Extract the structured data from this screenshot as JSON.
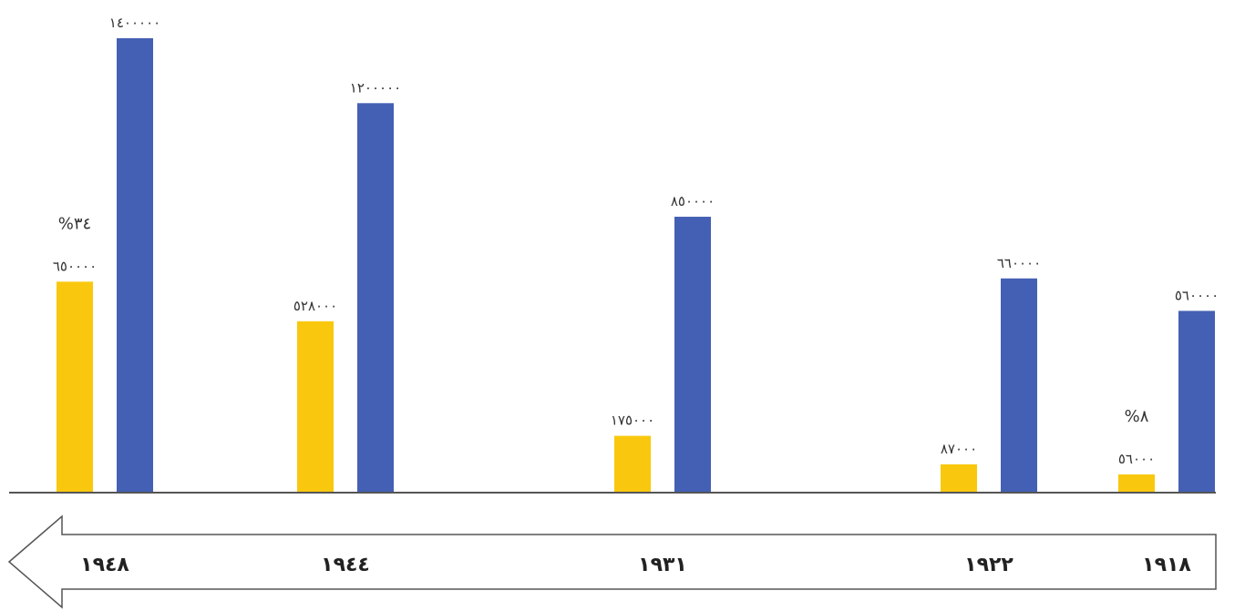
{
  "chart_data": {
    "type": "bar",
    "title": "",
    "xlabel": "",
    "ylabel": "",
    "ylim": [
      0,
      1400000
    ],
    "grid": false,
    "legend": "none",
    "direction": "rtl",
    "categories": [
      "١٩١٨",
      "١٩٢٢",
      "١٩٣١",
      "١٩٤٤",
      "١٩٤٨"
    ],
    "series": [
      {
        "color": "#f9c80e",
        "values": [
          56000,
          87000,
          175000,
          528000,
          650000
        ],
        "labels": [
          "٥٦٠٠٠",
          "٨٧٠٠٠",
          "١٧٥٠٠٠",
          "٥٢٨٠٠٠",
          "٦٥٠٠٠٠"
        ]
      },
      {
        "color": "#4460b4",
        "values": [
          560000,
          660000,
          850000,
          1200000,
          1400000
        ],
        "labels": [
          "٥٦٠٠٠٠",
          "٦٦٠٠٠٠",
          "٨٥٠٠٠٠",
          "١٢٠٠٠٠٠",
          "١٤٠٠٠٠٠"
        ]
      }
    ],
    "annotations": [
      {
        "category": "١٩١٨",
        "text": "%٨"
      },
      {
        "category": "١٩٤٨",
        "text": "%٣٤"
      }
    ]
  }
}
